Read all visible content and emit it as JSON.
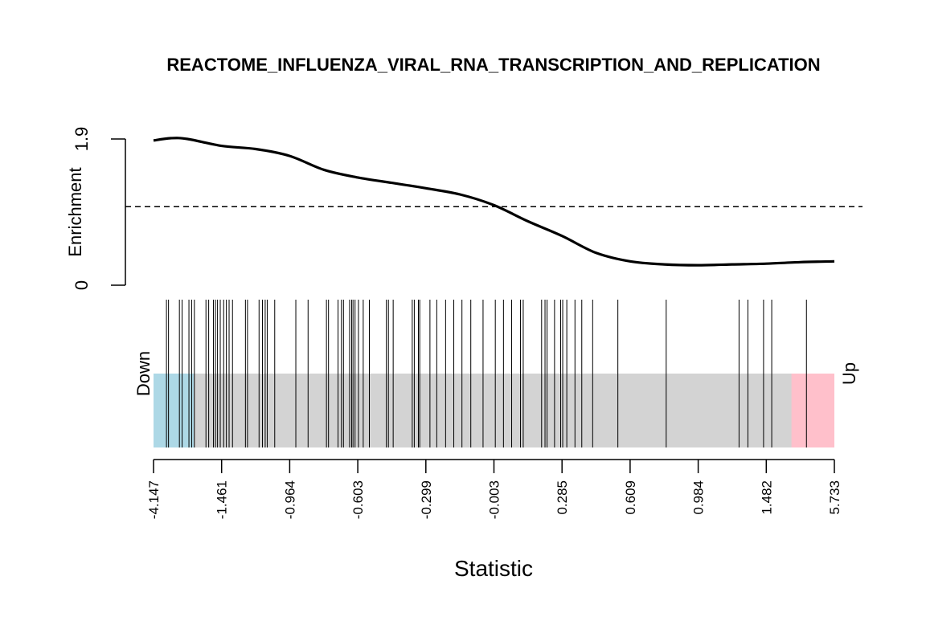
{
  "chart_data": {
    "type": "barcode-enrichment",
    "title": "REACTOME_INFLUENZA_VIRAL_RNA_TRANSCRIPTION_AND_REPLICATION",
    "xlabel": "Statistic",
    "ylabel": "Enrichment",
    "down_label": "Down",
    "up_label": "Up",
    "colors": {
      "down": "#add8e6",
      "middle": "#d3d3d3",
      "up": "#ffc0cb",
      "line": "#000000"
    },
    "y_ticks": [
      "0",
      "1.9"
    ],
    "ylim": [
      0,
      1.9
    ],
    "reference_line": 1.02,
    "x_ticks": [
      "-4.147",
      "-1.461",
      "-0.964",
      "-0.603",
      "-0.299",
      "-0.003",
      "0.285",
      "0.609",
      "0.984",
      "1.482",
      "5.733"
    ],
    "down_region_end": 0.059,
    "up_region_start": 0.937,
    "barcode_positions": [
      0.019,
      0.022,
      0.038,
      0.042,
      0.052,
      0.056,
      0.06,
      0.077,
      0.081,
      0.088,
      0.091,
      0.094,
      0.098,
      0.103,
      0.107,
      0.111,
      0.116,
      0.135,
      0.138,
      0.155,
      0.16,
      0.164,
      0.167,
      0.178,
      0.209,
      0.227,
      0.254,
      0.257,
      0.271,
      0.276,
      0.279,
      0.288,
      0.291,
      0.293,
      0.296,
      0.301,
      0.308,
      0.317,
      0.342,
      0.345,
      0.352,
      0.38,
      0.383,
      0.389,
      0.391,
      0.406,
      0.416,
      0.429,
      0.441,
      0.453,
      0.466,
      0.484,
      0.502,
      0.514,
      0.526,
      0.539,
      0.543,
      0.57,
      0.575,
      0.578,
      0.589,
      0.598,
      0.601,
      0.607,
      0.619,
      0.629,
      0.645,
      0.682,
      0.753,
      0.86,
      0.873,
      0.896,
      0.908,
      0.959
    ],
    "curve": {
      "x": [
        0.0,
        0.025,
        0.05,
        0.1,
        0.15,
        0.2,
        0.25,
        0.3,
        0.35,
        0.4,
        0.45,
        0.5,
        0.55,
        0.6,
        0.65,
        0.7,
        0.75,
        0.8,
        0.85,
        0.9,
        0.95,
        1.0
      ],
      "y": [
        1.88,
        1.91,
        1.9,
        1.81,
        1.77,
        1.68,
        1.5,
        1.4,
        1.33,
        1.26,
        1.18,
        1.04,
        0.83,
        0.64,
        0.42,
        0.31,
        0.27,
        0.26,
        0.27,
        0.28,
        0.3,
        0.31
      ]
    }
  }
}
